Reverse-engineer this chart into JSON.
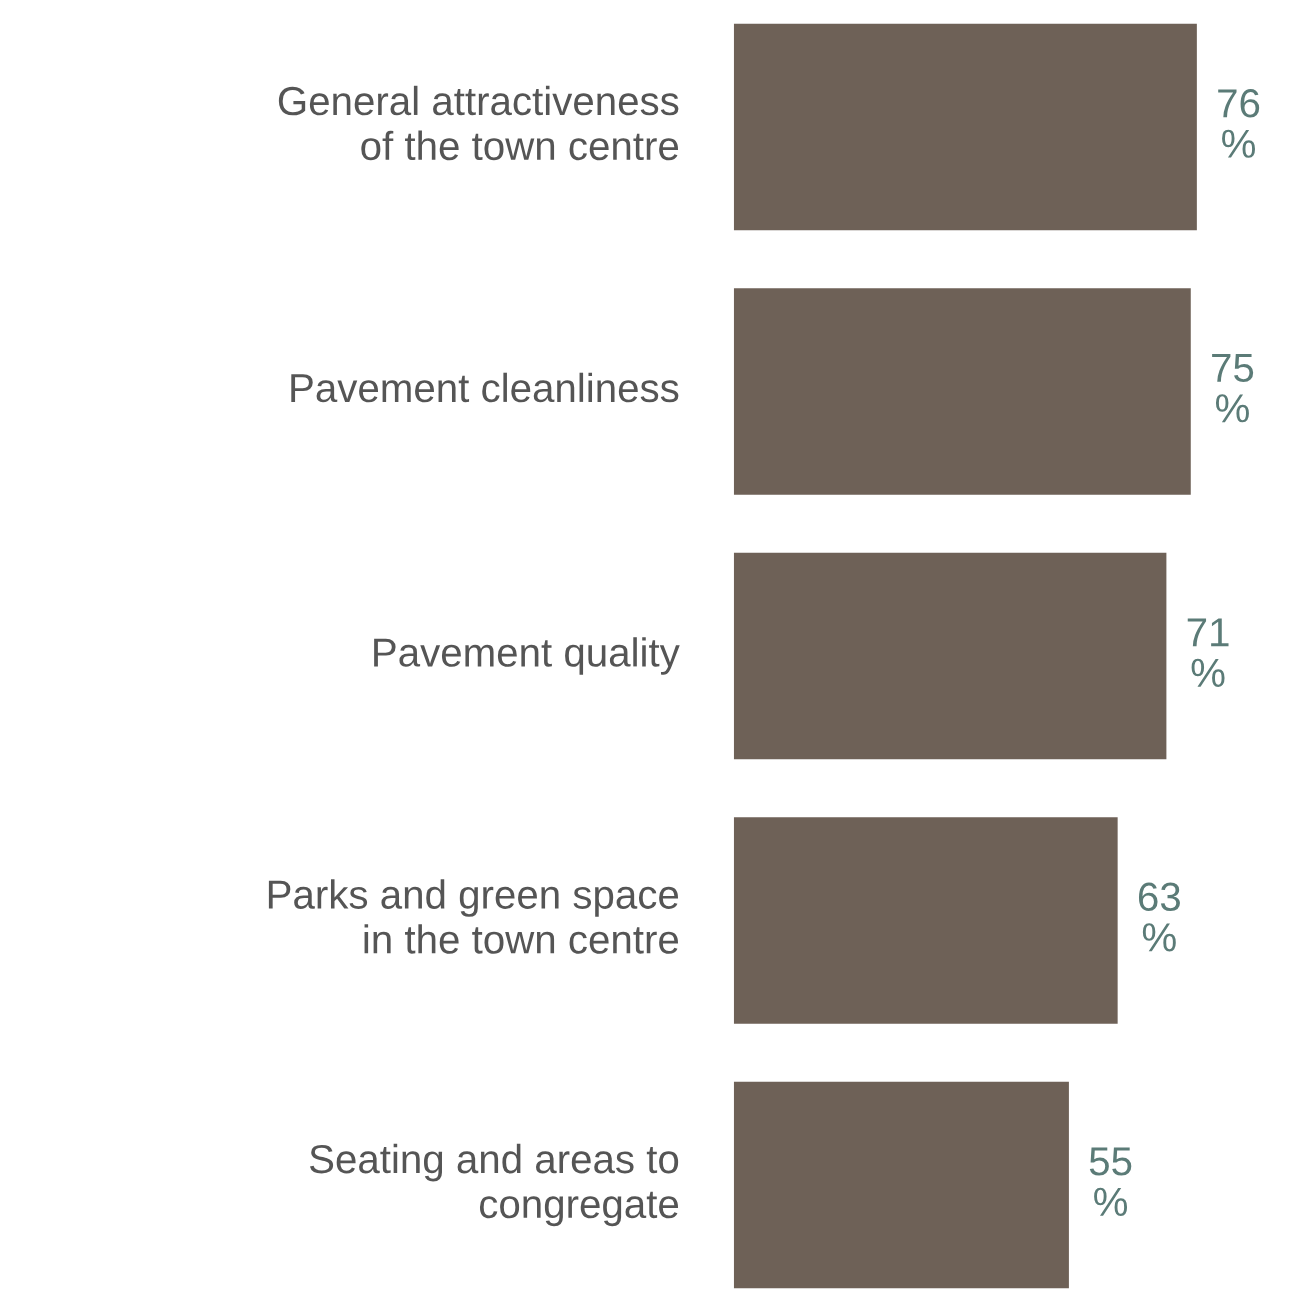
{
  "chart_data": {
    "type": "bar",
    "orientation": "horizontal",
    "categories": [
      "General attractiveness\nof the town centre",
      "Pavement cleanliness",
      "Pavement quality",
      "Parks and green space\nin the town centre",
      "Seating and areas to\ncongregate"
    ],
    "values": [
      76,
      75,
      71,
      63,
      55
    ],
    "color": "#6e6157",
    "value_labels": [
      "76 %",
      "75 %",
      "71 %",
      "63 %",
      "55 %"
    ]
  }
}
